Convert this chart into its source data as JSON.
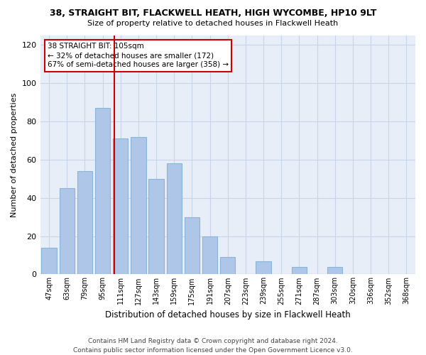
{
  "title": "38, STRAIGHT BIT, FLACKWELL HEATH, HIGH WYCOMBE, HP10 9LT",
  "subtitle": "Size of property relative to detached houses in Flackwell Heath",
  "xlabel": "Distribution of detached houses by size in Flackwell Heath",
  "ylabel": "Number of detached properties",
  "bar_values": [
    14,
    45,
    54,
    87,
    71,
    72,
    50,
    58,
    30,
    20,
    9,
    0,
    7,
    0,
    4,
    0,
    4,
    0,
    0,
    0,
    0
  ],
  "categories": [
    "47sqm",
    "63sqm",
    "79sqm",
    "95sqm",
    "111sqm",
    "127sqm",
    "143sqm",
    "159sqm",
    "175sqm",
    "191sqm",
    "207sqm",
    "223sqm",
    "239sqm",
    "255sqm",
    "271sqm",
    "287sqm",
    "303sqm",
    "320sqm",
    "336sqm",
    "352sqm",
    "368sqm"
  ],
  "bar_color": "#aec6e8",
  "bar_edge_color": "#8ab4d8",
  "red_line_idx": 4,
  "annotation_text": "38 STRAIGHT BIT: 105sqm\n← 32% of detached houses are smaller (172)\n67% of semi-detached houses are larger (358) →",
  "annotation_box_color": "#ffffff",
  "annotation_box_edge": "#cc0000",
  "ylim": [
    0,
    125
  ],
  "yticks": [
    0,
    20,
    40,
    60,
    80,
    100,
    120
  ],
  "grid_color": "#c8d4e8",
  "bg_color": "#e8eef8",
  "footer": "Contains HM Land Registry data © Crown copyright and database right 2024.\nContains public sector information licensed under the Open Government Licence v3.0."
}
